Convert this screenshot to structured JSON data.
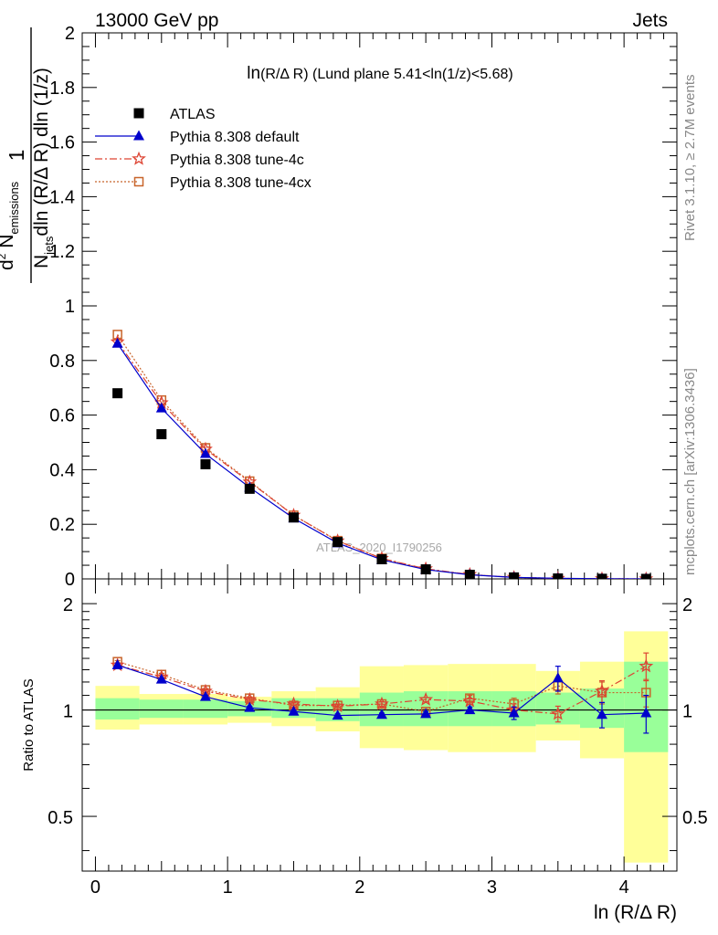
{
  "header": {
    "left": "13000 GeV pp",
    "right": "Jets"
  },
  "title": "ln(R/Δ R) (Lund plane 5.41<ln(1/z)<5.68)",
  "side_labels": {
    "rivet": "Rivet 3.1.10, ≥ 2.7M events",
    "mcplots": "mcplots.cern.ch [arXiv:1306.3436]"
  },
  "watermark": "ATLAS_2020_I1790256",
  "chart_data": [
    {
      "type": "scatter",
      "panel": "main",
      "ylabel": "1/N_jets d²N_emissions / dln(R/Δ R) dln(1/z)",
      "xlabel": "",
      "xlim": [
        -0.1,
        4.4
      ],
      "ylim": [
        0,
        2
      ],
      "yticks": [
        "0",
        "0.2",
        "0.4",
        "0.6",
        "0.8",
        "1",
        "1.2",
        "1.4",
        "1.6",
        "1.8",
        "2"
      ],
      "legend_position": "top-left",
      "x": [
        0.167,
        0.5,
        0.833,
        1.167,
        1.5,
        1.833,
        2.167,
        2.5,
        2.833,
        3.167,
        3.5,
        3.833,
        4.167
      ],
      "series": [
        {
          "name": "ATLAS",
          "color": "#000000",
          "marker": "square",
          "values": [
            0.68,
            0.53,
            0.42,
            0.33,
            0.225,
            0.135,
            0.072,
            0.035,
            0.015,
            0.0055,
            0.0017,
            0.0005,
            0.0001
          ]
        },
        {
          "name": "Pythia 8.308 default",
          "color": "#0000cc",
          "marker": "triangle",
          "line": "solid",
          "values": [
            0.862,
            0.625,
            0.458,
            0.335,
            0.222,
            0.131,
            0.07,
            0.034,
            0.015,
            0.0054,
            0.0021,
            0.0005,
            0.0001
          ]
        },
        {
          "name": "Pythia 8.308 tune-4c",
          "color": "#dd4433",
          "marker": "star",
          "line": "dashdot",
          "values": [
            0.868,
            0.645,
            0.475,
            0.355,
            0.233,
            0.139,
            0.075,
            0.037,
            0.016,
            0.0055,
            0.0017,
            0.0006,
            0.0001
          ]
        },
        {
          "name": "Pythia 8.308 tune-4cx",
          "color": "#c8642a",
          "marker": "open-square",
          "line": "dotted",
          "values": [
            0.895,
            0.655,
            0.48,
            0.358,
            0.233,
            0.14,
            0.075,
            0.035,
            0.016,
            0.0057,
            0.002,
            0.0006,
            0.0001
          ]
        }
      ]
    },
    {
      "type": "scatter",
      "panel": "ratio",
      "ylabel": "Ratio to ATLAS",
      "xlabel": "ln (R/Δ R)",
      "xlim": [
        -0.1,
        4.4
      ],
      "ylim": [
        0.35,
        2.35
      ],
      "yscale": "log",
      "yticks": [
        {
          "value": 0.5,
          "label": "0.5"
        },
        {
          "value": 1,
          "label": "1"
        },
        {
          "value": 2,
          "label": "2"
        }
      ],
      "xticks": [
        "0",
        "1",
        "2",
        "3",
        "4"
      ],
      "reference_line": 1,
      "bins": [
        0,
        0.333,
        0.667,
        1.0,
        1.333,
        1.667,
        2.0,
        2.333,
        2.667,
        3.0,
        3.333,
        3.667,
        4.0,
        4.333
      ],
      "band_inner": [
        [
          0.94,
          1.08
        ],
        [
          0.95,
          1.07
        ],
        [
          0.95,
          1.07
        ],
        [
          0.96,
          1.06
        ],
        [
          0.95,
          1.08
        ],
        [
          0.93,
          1.08
        ],
        [
          0.9,
          1.12
        ],
        [
          0.9,
          1.13
        ],
        [
          0.9,
          1.13
        ],
        [
          0.9,
          1.13
        ],
        [
          0.91,
          1.12
        ],
        [
          0.89,
          1.15
        ],
        [
          0.76,
          1.37
        ]
      ],
      "band_outer": [
        [
          0.88,
          1.17
        ],
        [
          0.91,
          1.11
        ],
        [
          0.91,
          1.11
        ],
        [
          0.92,
          1.09
        ],
        [
          0.9,
          1.13
        ],
        [
          0.87,
          1.16
        ],
        [
          0.78,
          1.33
        ],
        [
          0.77,
          1.34
        ],
        [
          0.76,
          1.35
        ],
        [
          0.76,
          1.35
        ],
        [
          0.82,
          1.29
        ],
        [
          0.73,
          1.37
        ],
        [
          0.37,
          1.67
        ]
      ],
      "series": [
        {
          "name": "Pythia 8.308 default",
          "color": "#0000cc",
          "values": [
            1.34,
            1.22,
            1.09,
            1.015,
            0.99,
            0.965,
            0.97,
            0.975,
            1.0,
            0.98,
            1.23,
            0.97,
            0.98
          ],
          "errors": [
            0.01,
            0.01,
            0.01,
            0.01,
            0.01,
            0.01,
            0.01,
            0.015,
            0.02,
            0.04,
            0.1,
            0.08,
            0.12
          ]
        },
        {
          "name": "Pythia 8.308 tune-4c",
          "color": "#dd4433",
          "values": [
            1.34,
            1.24,
            1.13,
            1.07,
            1.04,
            1.025,
            1.04,
            1.07,
            1.06,
            1.0,
            0.975,
            1.13,
            1.33
          ],
          "errors": [
            0.01,
            0.01,
            0.01,
            0.01,
            0.01,
            0.01,
            0.015,
            0.015,
            0.02,
            0.04,
            0.05,
            0.08,
            0.12
          ]
        },
        {
          "name": "Pythia 8.308 tune-4cx",
          "color": "#c8642a",
          "values": [
            1.37,
            1.26,
            1.14,
            1.08,
            1.03,
            1.03,
            1.04,
            0.99,
            1.08,
            1.04,
            1.17,
            1.12,
            1.12
          ],
          "errors": [
            0.01,
            0.01,
            0.01,
            0.01,
            0.01,
            0.01,
            0.015,
            0.015,
            0.02,
            0.04,
            0.06,
            0.08,
            0.1
          ]
        }
      ]
    }
  ]
}
